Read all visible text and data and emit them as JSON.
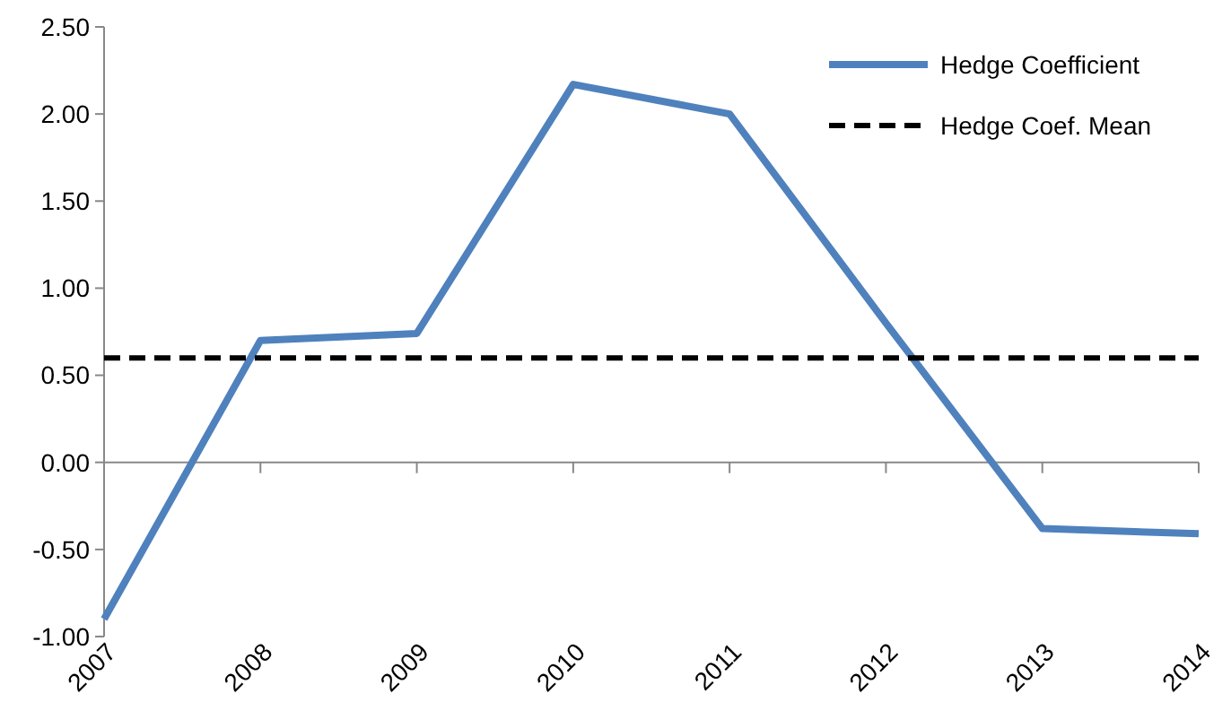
{
  "chart_data": {
    "type": "line",
    "categories": [
      "2007",
      "2008",
      "2009",
      "2010",
      "2011",
      "2012",
      "2013",
      "2014"
    ],
    "series": [
      {
        "name": "Hedge Coefficient",
        "color": "#4f81bd",
        "values": [
          -0.9,
          0.7,
          0.74,
          2.17,
          2.0,
          0.8,
          -0.38,
          -0.41
        ],
        "line_style": "solid"
      },
      {
        "name": "Hedge Coef. Mean",
        "color": "#000000",
        "values": [
          0.6,
          0.6,
          0.6,
          0.6,
          0.6,
          0.6,
          0.6,
          0.6
        ],
        "line_style": "dashed"
      }
    ],
    "ylim": [
      -1,
      2.5
    ],
    "yticks": [
      {
        "value": -1,
        "label": "-1.00"
      },
      {
        "value": -0.5,
        "label": "-0.50"
      },
      {
        "value": 0,
        "label": "0.00"
      },
      {
        "value": 0.5,
        "label": "0.50"
      },
      {
        "value": 1,
        "label": "1.00"
      },
      {
        "value": 1.5,
        "label": "1.50"
      },
      {
        "value": 2,
        "label": "2.00"
      },
      {
        "value": 2.5,
        "label": "2.50"
      }
    ],
    "legend": "top right"
  }
}
